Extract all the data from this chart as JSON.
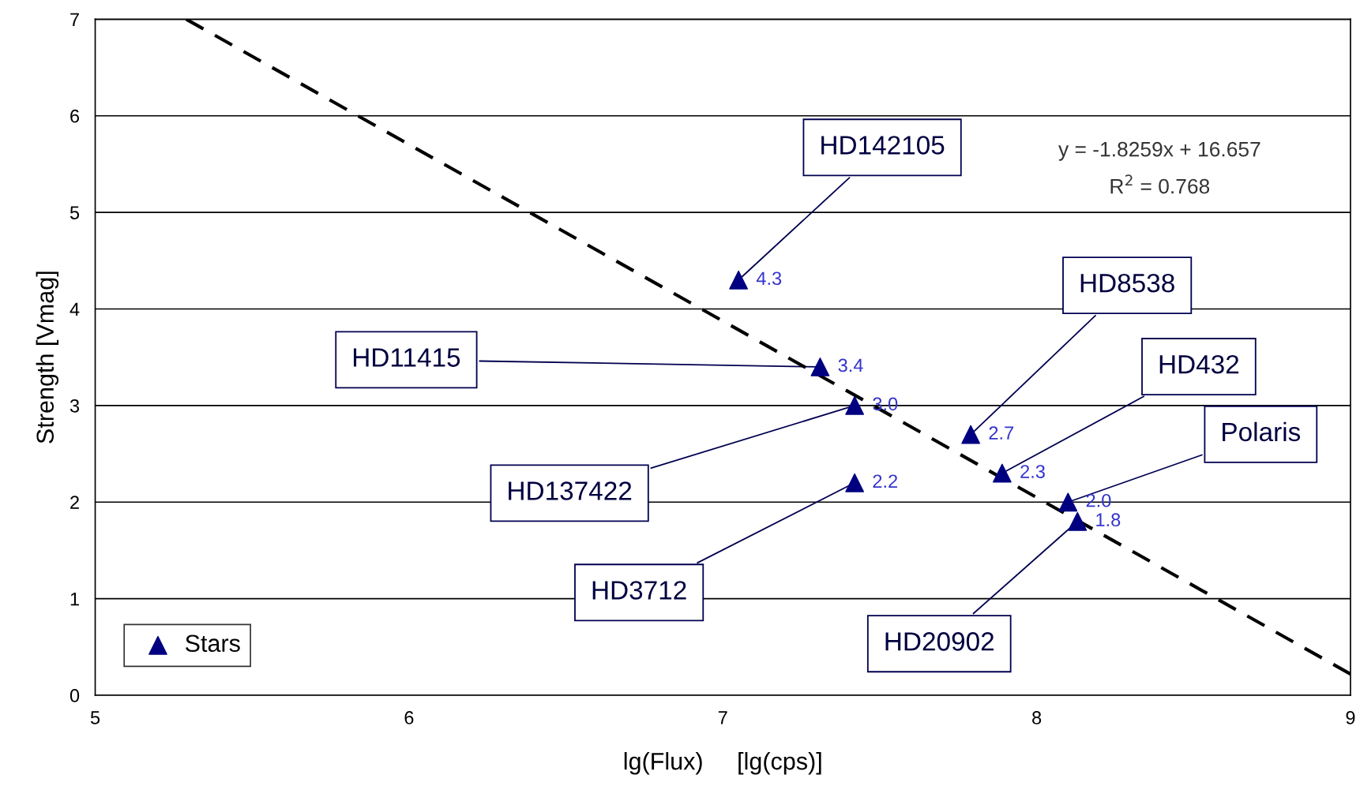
{
  "chart_data": {
    "type": "scatter",
    "xlabel": "lg(Flux)     [lg(cps)]",
    "ylabel": "Strength [Vmag]",
    "xlim": [
      5,
      9
    ],
    "xticks": [
      5,
      6,
      7,
      8,
      9
    ],
    "ylim": [
      0,
      7
    ],
    "yticks": [
      0,
      1,
      2,
      3,
      4,
      5,
      6,
      7
    ],
    "grid": "y",
    "legend": "bottom left",
    "series": [
      {
        "name": "Stars",
        "color": "#000080",
        "marker": "triangle",
        "x": [
          7.05,
          7.31,
          7.42,
          7.79,
          7.89,
          7.42,
          8.1,
          8.13
        ],
        "values": [
          4.3,
          3.4,
          3.0,
          2.7,
          2.3,
          2.2,
          2.0,
          1.8
        ],
        "value_labels": [
          "4.3",
          "3.4",
          "3.0",
          "2.7",
          "2.3",
          "2.2",
          "2.0",
          "1.8"
        ]
      },
      {
        "type": "line",
        "color": "#000000",
        "line_style": "dashed",
        "x": [
          5.29,
          9
        ],
        "values": [
          7.0,
          0.22
        ]
      }
    ],
    "annotations": [
      {
        "text": "HD142105",
        "x": 7.05,
        "y": 4.3
      },
      {
        "text": "HD11415",
        "x": 7.31,
        "y": 3.4
      },
      {
        "text": "HD137422",
        "x": 7.42,
        "y": 3.0
      },
      {
        "text": "HD8538",
        "x": 7.79,
        "y": 2.7
      },
      {
        "text": "HD432",
        "x": 7.89,
        "y": 2.3
      },
      {
        "text": "HD3712",
        "x": 7.42,
        "y": 2.2
      },
      {
        "text": "Polaris",
        "x": 8.1,
        "y": 2.0
      },
      {
        "text": "HD20902",
        "x": 8.13,
        "y": 1.8
      },
      "y = -1.8259x + 16.657",
      "R$^{2}$ = 0.768"
    ]
  }
}
